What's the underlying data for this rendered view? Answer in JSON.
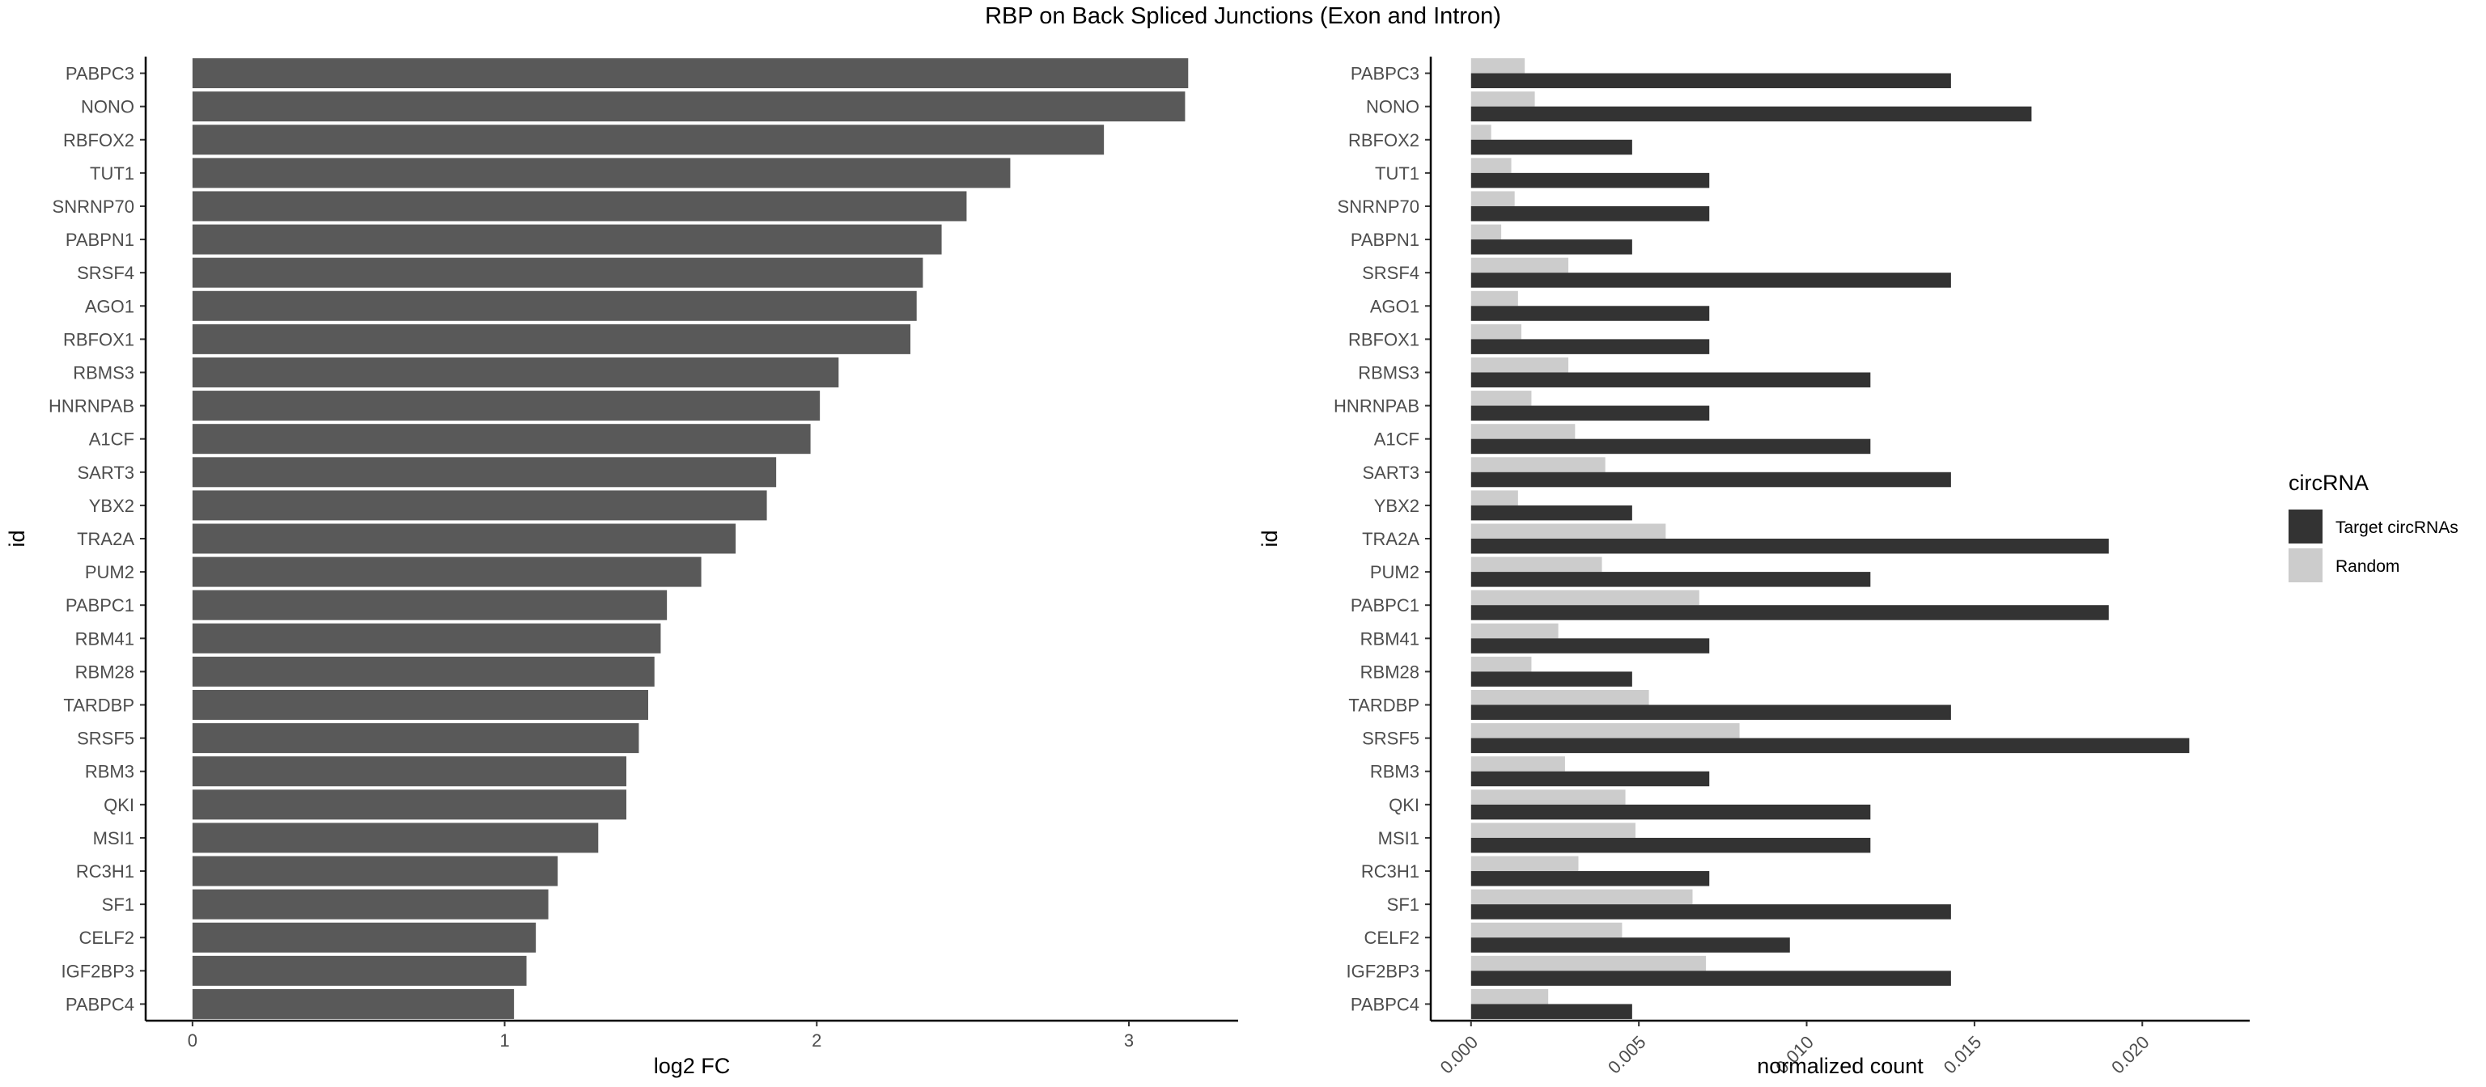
{
  "title": "RBP on Back Spliced Junctions (Exon and Intron)",
  "chart_data": [
    {
      "type": "bar",
      "orientation": "horizontal",
      "xlabel": "log2 FC",
      "ylabel": "id",
      "xlim": [
        -0.15,
        3.35
      ],
      "xticks": [
        0,
        1,
        2,
        3
      ],
      "grid": false,
      "bar_color": "#595959",
      "categories": [
        "PABPC3",
        "NONO",
        "RBFOX2",
        "TUT1",
        "SNRNP70",
        "PABPN1",
        "SRSF4",
        "AGO1",
        "RBFOX1",
        "RBMS3",
        "HNRNPAB",
        "A1CF",
        "SART3",
        "YBX2",
        "TRA2A",
        "PUM2",
        "PABPC1",
        "RBM41",
        "RBM28",
        "TARDBP",
        "SRSF5",
        "RBM3",
        "QKI",
        "MSI1",
        "RC3H1",
        "SF1",
        "CELF2",
        "IGF2BP3",
        "PABPC4"
      ],
      "values": [
        3.19,
        3.18,
        2.92,
        2.62,
        2.48,
        2.4,
        2.34,
        2.32,
        2.3,
        2.07,
        2.01,
        1.98,
        1.87,
        1.84,
        1.74,
        1.63,
        1.52,
        1.5,
        1.48,
        1.46,
        1.43,
        1.39,
        1.39,
        1.3,
        1.17,
        1.14,
        1.1,
        1.07,
        1.03
      ]
    },
    {
      "type": "bar",
      "orientation": "horizontal",
      "grouping": "dodged",
      "xlabel": "normalized count",
      "ylabel": "id",
      "xlim": [
        -0.0012,
        0.0232
      ],
      "xticks": [
        "0.000",
        "0.005",
        "0.010",
        "0.015",
        "0.020"
      ],
      "xtick_values": [
        0,
        0.005,
        0.01,
        0.015,
        0.02
      ],
      "grid": false,
      "legend": {
        "title": "circRNA",
        "position": "right"
      },
      "categories": [
        "PABPC3",
        "NONO",
        "RBFOX2",
        "TUT1",
        "SNRNP70",
        "PABPN1",
        "SRSF4",
        "AGO1",
        "RBFOX1",
        "RBMS3",
        "HNRNPAB",
        "A1CF",
        "SART3",
        "YBX2",
        "TRA2A",
        "PUM2",
        "PABPC1",
        "RBM41",
        "RBM28",
        "TARDBP",
        "SRSF5",
        "RBM3",
        "QKI",
        "MSI1",
        "RC3H1",
        "SF1",
        "CELF2",
        "IGF2BP3",
        "PABPC4"
      ],
      "series": [
        {
          "name": "Target circRNAs",
          "color": "#333333",
          "values": [
            0.0143,
            0.0167,
            0.0048,
            0.0071,
            0.0071,
            0.0048,
            0.0143,
            0.0071,
            0.0071,
            0.0119,
            0.0071,
            0.0119,
            0.0143,
            0.0048,
            0.019,
            0.0119,
            0.019,
            0.0071,
            0.0048,
            0.0143,
            0.0214,
            0.0071,
            0.0119,
            0.0119,
            0.0071,
            0.0143,
            0.0095,
            0.0143,
            0.0048
          ]
        },
        {
          "name": "Random",
          "color": "#cccccc",
          "values": [
            0.0016,
            0.0019,
            0.0006,
            0.0012,
            0.0013,
            0.0009,
            0.0029,
            0.0014,
            0.0015,
            0.0029,
            0.0018,
            0.0031,
            0.004,
            0.0014,
            0.0058,
            0.0039,
            0.0068,
            0.0026,
            0.0018,
            0.0053,
            0.008,
            0.0028,
            0.0046,
            0.0049,
            0.0032,
            0.0066,
            0.0045,
            0.007,
            0.0023
          ]
        }
      ]
    }
  ]
}
